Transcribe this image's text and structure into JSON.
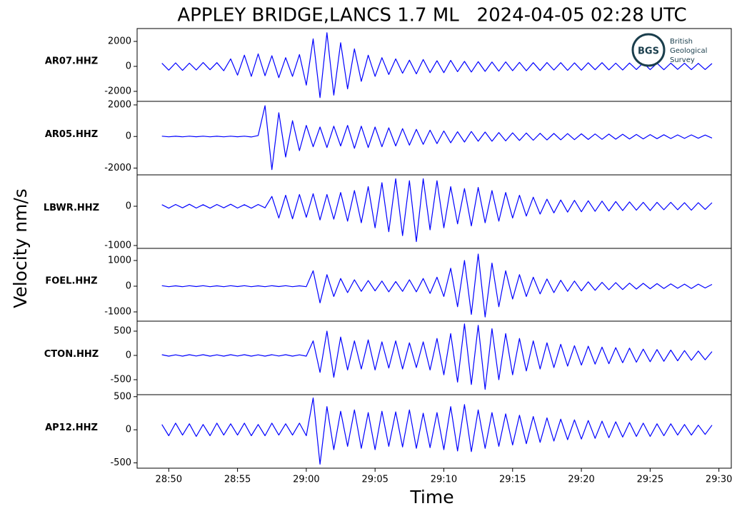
{
  "chart_data": {
    "type": "line",
    "title": "APPLEY BRIDGE,LANCS 1.7 ML   2024-04-05 02:28 UTC",
    "y_label": "Velocity nm/s",
    "x_label": "Time",
    "color": "#0000ff",
    "xlim": [
      1727.7,
      1770.9
    ],
    "xticks": [
      {
        "value": 1730,
        "label": "28:50"
      },
      {
        "value": 1735,
        "label": "28:55"
      },
      {
        "value": 1740,
        "label": "29:00"
      },
      {
        "value": 1745,
        "label": "29:05"
      },
      {
        "value": 1750,
        "label": "29:10"
      },
      {
        "value": 1755,
        "label": "29:15"
      },
      {
        "value": 1760,
        "label": "29:20"
      },
      {
        "value": 1765,
        "label": "29:25"
      },
      {
        "value": 1770,
        "label": "29:30"
      }
    ],
    "x": [
      1729.5,
      1730,
      1730.5,
      1731,
      1731.5,
      1732,
      1732.5,
      1733,
      1733.5,
      1734,
      1734.5,
      1735,
      1735.5,
      1736,
      1736.5,
      1737,
      1737.5,
      1738,
      1738.5,
      1739,
      1739.5,
      1740,
      1740.5,
      1741,
      1741.5,
      1742,
      1742.5,
      1743,
      1743.5,
      1744,
      1744.5,
      1745,
      1745.5,
      1746,
      1746.5,
      1747,
      1747.5,
      1748,
      1748.5,
      1749,
      1749.5,
      1750,
      1750.5,
      1751,
      1751.5,
      1752,
      1752.5,
      1753,
      1753.5,
      1754,
      1754.5,
      1755,
      1755.5,
      1756,
      1756.5,
      1757,
      1757.5,
      1758,
      1758.5,
      1759,
      1759.5,
      1760,
      1760.5,
      1761,
      1761.5,
      1762,
      1762.5,
      1763,
      1763.5,
      1764,
      1764.5,
      1765,
      1765.5,
      1766,
      1766.5,
      1767,
      1767.5,
      1768,
      1768.5,
      1769,
      1769.5
    ],
    "panels": [
      {
        "label": "AR07.HHZ",
        "ylim": [
          -2800,
          3030
        ],
        "yticks": [
          -2000,
          0,
          2000
        ],
        "values": [
          250,
          -300,
          280,
          -320,
          260,
          -290,
          310,
          -270,
          300,
          -350,
          600,
          -700,
          900,
          -800,
          1000,
          -750,
          850,
          -900,
          700,
          -800,
          950,
          -1500,
          2200,
          -2500,
          2700,
          -2300,
          1900,
          -1800,
          1400,
          -1200,
          900,
          -800,
          700,
          -650,
          600,
          -550,
          500,
          -600,
          550,
          -500,
          450,
          -500,
          480,
          -420,
          400,
          -450,
          380,
          -400,
          350,
          -380,
          360,
          -340,
          320,
          -350,
          300,
          -330,
          310,
          -290,
          300,
          -320,
          280,
          -300,
          290,
          -270,
          300,
          -280,
          260,
          -290,
          270,
          -250,
          280,
          -260,
          250,
          -270,
          260,
          -240,
          250,
          -260,
          240,
          -250,
          230
        ]
      },
      {
        "label": "AR05.HHZ",
        "ylim": [
          -2430,
          2225
        ],
        "yticks": [
          -2000,
          0,
          2000
        ],
        "values": [
          20,
          -20,
          15,
          -20,
          20,
          -15,
          20,
          -20,
          15,
          -20,
          20,
          -15,
          20,
          -30,
          60,
          1950,
          -2100,
          1500,
          -1300,
          1000,
          -900,
          700,
          -650,
          600,
          -700,
          650,
          -600,
          700,
          -750,
          650,
          -700,
          600,
          -650,
          550,
          -600,
          500,
          -550,
          450,
          -500,
          400,
          -450,
          350,
          -400,
          300,
          -350,
          320,
          -300,
          280,
          -300,
          250,
          -280,
          230,
          -250,
          220,
          -240,
          200,
          -220,
          190,
          -210,
          180,
          -200,
          170,
          -190,
          160,
          -180,
          150,
          -170,
          140,
          -160,
          130,
          -150,
          120,
          -140,
          110,
          -130,
          100,
          -120,
          100,
          -110,
          90,
          -100
        ]
      },
      {
        "label": "LBWR.HHZ",
        "ylim": [
          -1073,
          800
        ],
        "yticks": [
          -1000,
          0
        ],
        "values": [
          40,
          -50,
          45,
          -40,
          50,
          -45,
          40,
          -50,
          45,
          -40,
          50,
          -45,
          40,
          -50,
          45,
          -40,
          250,
          -300,
          280,
          -320,
          300,
          -280,
          320,
          -350,
          300,
          -330,
          350,
          -380,
          400,
          -420,
          500,
          -550,
          600,
          -650,
          700,
          -750,
          650,
          -900,
          700,
          -600,
          650,
          -550,
          500,
          -450,
          450,
          -500,
          480,
          -420,
          400,
          -380,
          350,
          -300,
          280,
          -250,
          230,
          -200,
          180,
          -170,
          160,
          -150,
          150,
          -140,
          140,
          -130,
          130,
          -120,
          120,
          -110,
          110,
          -100,
          100,
          -110,
          100,
          -90,
          100,
          -90,
          90,
          -100,
          90,
          -80,
          90
        ]
      },
      {
        "label": "FOEL.HHZ",
        "ylim": [
          -1361,
          1472
        ],
        "yticks": [
          -1000,
          0,
          1000
        ],
        "values": [
          20,
          -20,
          15,
          -20,
          20,
          -15,
          20,
          -20,
          15,
          -20,
          20,
          -15,
          20,
          -20,
          15,
          -20,
          20,
          -15,
          20,
          -20,
          15,
          -20,
          600,
          -650,
          450,
          -400,
          300,
          -250,
          250,
          -200,
          220,
          -180,
          200,
          -220,
          180,
          -200,
          250,
          -220,
          300,
          -280,
          350,
          -400,
          700,
          -800,
          1000,
          -1100,
          1250,
          -1200,
          900,
          -800,
          600,
          -500,
          450,
          -400,
          350,
          -300,
          280,
          -250,
          230,
          -200,
          200,
          -180,
          170,
          -160,
          150,
          -140,
          140,
          -130,
          120,
          -110,
          110,
          -100,
          100,
          -90,
          90,
          -80,
          80,
          -90,
          80,
          -70,
          70
        ]
      },
      {
        "label": "CTON.HHZ",
        "ylim": [
          -809,
          706
        ],
        "yticks": [
          -500,
          0,
          500
        ],
        "values": [
          15,
          -15,
          12,
          -15,
          15,
          -12,
          15,
          -15,
          12,
          -15,
          15,
          -12,
          15,
          -15,
          12,
          -15,
          15,
          -12,
          15,
          -15,
          12,
          -15,
          300,
          -350,
          500,
          -450,
          380,
          -300,
          300,
          -280,
          320,
          -300,
          280,
          -260,
          300,
          -280,
          260,
          -250,
          280,
          -300,
          350,
          -400,
          450,
          -550,
          650,
          -600,
          620,
          -700,
          550,
          -500,
          450,
          -400,
          350,
          -320,
          300,
          -280,
          260,
          -250,
          230,
          -220,
          200,
          -200,
          190,
          -180,
          170,
          -170,
          160,
          -150,
          150,
          -140,
          130,
          -130,
          120,
          -120,
          110,
          -110,
          100,
          -100,
          90,
          -90,
          80
        ]
      },
      {
        "label": "AP12.HHZ",
        "ylim": [
          -580,
          530
        ],
        "yticks": [
          -500,
          0,
          500
        ],
        "values": [
          80,
          -90,
          100,
          -80,
          90,
          -100,
          80,
          -90,
          100,
          -80,
          90,
          -80,
          100,
          -90,
          80,
          -90,
          100,
          -80,
          90,
          -80,
          100,
          -90,
          480,
          -520,
          350,
          -300,
          280,
          -250,
          300,
          -280,
          260,
          -300,
          280,
          -250,
          270,
          -260,
          300,
          -280,
          250,
          -270,
          260,
          -300,
          350,
          -320,
          380,
          -330,
          300,
          -280,
          260,
          -250,
          240,
          -230,
          220,
          -210,
          200,
          -190,
          180,
          -170,
          160,
          -150,
          150,
          -140,
          140,
          -130,
          130,
          -120,
          120,
          -110,
          110,
          -100,
          100,
          -100,
          90,
          -90,
          90,
          -80,
          80,
          -80,
          70,
          -70,
          70
        ]
      }
    ],
    "logo": {
      "mark": "BGS",
      "lines": [
        "British",
        "Geological",
        "Survey"
      ]
    }
  }
}
